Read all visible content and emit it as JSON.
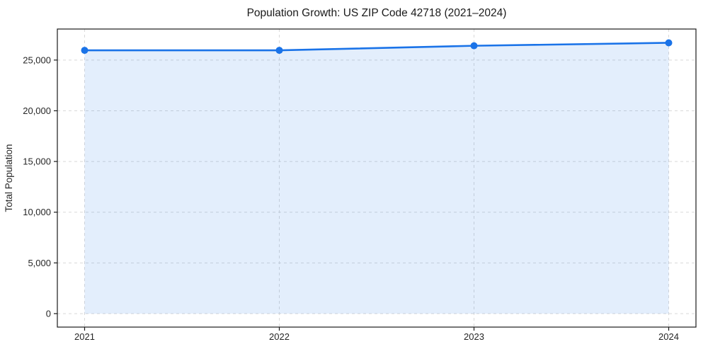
{
  "chart_data": {
    "type": "line",
    "subtype": "line-with-area-fill-and-markers",
    "title": "Population Growth: US ZIP Code 42718 (2021–2024)",
    "xlabel": "",
    "ylabel": "Total Population",
    "x": [
      2021,
      2022,
      2023,
      2024
    ],
    "series": [
      {
        "name": "Total Population",
        "values": [
          25960,
          25960,
          26410,
          26700
        ]
      }
    ],
    "xticks": {
      "values": [
        2021,
        2022,
        2023,
        2024
      ],
      "labels": [
        "2021",
        "2022",
        "2023",
        "2024"
      ]
    },
    "yticks": {
      "values": [
        0,
        5000,
        10000,
        15000,
        20000,
        25000
      ],
      "labels": [
        "0",
        "5,000",
        "10,000",
        "15,000",
        "20,000",
        "25,000"
      ]
    },
    "xlim": [
      2020.86,
      2024.14
    ],
    "ylim": [
      -1330,
      28060
    ],
    "fill_baseline": 0,
    "grid": true,
    "grid_style": "dashed",
    "legend": false,
    "colors": {
      "line": "#1a73e8",
      "marker": "#1a73e8",
      "fill": "#1a73e8",
      "fill_opacity": 0.12,
      "grid": "#d9d9d9",
      "spine": "#1a1a1a",
      "tick": "#1a1a1a",
      "text": "#262626",
      "background": "#ffffff"
    }
  }
}
